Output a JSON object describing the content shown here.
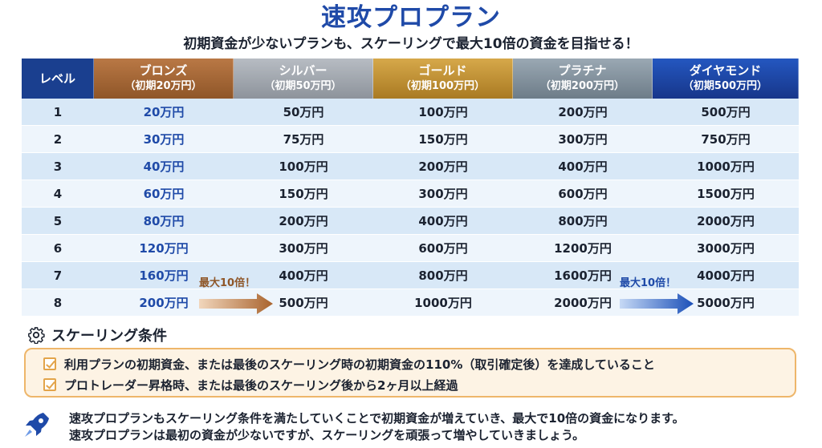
{
  "title": "速攻プロプラン",
  "subtitle": "初期資金が少ないプランも、スケーリングで最大10倍の資金を目指せる！",
  "table": {
    "headers": [
      {
        "name": "レベル",
        "sub": ""
      },
      {
        "name": "ブロンズ",
        "sub": "（初期20万円）"
      },
      {
        "name": "シルバー",
        "sub": "（初期50万円）"
      },
      {
        "name": "ゴールド",
        "sub": "（初期100万円）"
      },
      {
        "name": "プラチナ",
        "sub": "（初期200万円）"
      },
      {
        "name": "ダイヤモンド",
        "sub": "（初期500万円）"
      }
    ],
    "rows": [
      [
        "1",
        "20万円",
        "50万円",
        "100万円",
        "200万円",
        "500万円"
      ],
      [
        "2",
        "30万円",
        "75万円",
        "150万円",
        "300万円",
        "750万円"
      ],
      [
        "3",
        "40万円",
        "100万円",
        "200万円",
        "400万円",
        "1000万円"
      ],
      [
        "4",
        "60万円",
        "150万円",
        "300万円",
        "600万円",
        "1500万円"
      ],
      [
        "5",
        "80万円",
        "200万円",
        "400万円",
        "800万円",
        "2000万円"
      ],
      [
        "6",
        "120万円",
        "300万円",
        "600万円",
        "1200万円",
        "3000万円"
      ],
      [
        "7",
        "160万円",
        "400万円",
        "800万円",
        "1600万円",
        "4000万円"
      ],
      [
        "8",
        "200万円",
        "500万円",
        "1000万円",
        "2000万円",
        "5000万円"
      ]
    ]
  },
  "arrows": {
    "bronze_label": "最大10倍！",
    "diamond_label": "最大10倍！"
  },
  "conditions": {
    "heading": "スケーリング条件",
    "items": [
      "利用プランの初期資金、または最後のスケーリング時の初期資金の110%（取引確定後）を達成していること",
      "プロトレーダー昇格時、または最後のスケーリング後から2ヶ月以上経過"
    ]
  },
  "footer": {
    "lines": [
      "速攻プロプランもスケーリング条件を満たしていくことで初期資金が増えていき、最大で10倍の資金になります。",
      "速攻プロプランは最初の資金が少ないですが、スケーリングを頑張って増やしていきましょう。"
    ]
  },
  "colors": {
    "title": "#1f4aa8",
    "bronze": "#8f5628",
    "silver": "#8d939b",
    "gold": "#a97a22",
    "platinum": "#6d7c88",
    "diamond": "#17368a",
    "condition_border": "#eeb66a"
  },
  "icons": {
    "conditions": "gear-icon",
    "footer": "rocket-icon",
    "check": "checkbox-check-icon"
  }
}
